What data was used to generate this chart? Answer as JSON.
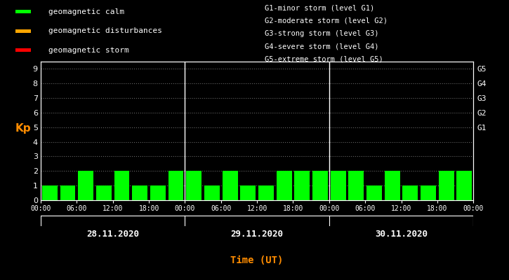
{
  "background_color": "#000000",
  "plot_bg_color": "#000000",
  "bar_color": "#00ff00",
  "text_color": "#ffffff",
  "kp_label_color": "#ff8c00",
  "xlabel_color": "#ff8c00",
  "date_label_color": "#ffffff",
  "bar_values": [
    1,
    1,
    2,
    1,
    2,
    1,
    1,
    2,
    2,
    1,
    2,
    1,
    1,
    2,
    2,
    2,
    2,
    2,
    1,
    2,
    1,
    1,
    2,
    2
  ],
  "days": [
    "28.11.2020",
    "29.11.2020",
    "30.11.2020"
  ],
  "ylim": [
    0,
    9.5
  ],
  "yticks": [
    0,
    1,
    2,
    3,
    4,
    5,
    6,
    7,
    8,
    9
  ],
  "right_labels": [
    [
      5,
      "G1"
    ],
    [
      6,
      "G2"
    ],
    [
      7,
      "G3"
    ],
    [
      8,
      "G4"
    ],
    [
      9,
      "G5"
    ]
  ],
  "hour_ticks": [
    0,
    6,
    12,
    18
  ],
  "legend_items": [
    {
      "color": "#00ff00",
      "label": "geomagnetic calm"
    },
    {
      "color": "#ffa500",
      "label": "geomagnetic disturbances"
    },
    {
      "color": "#ff0000",
      "label": "geomagnetic storm"
    }
  ],
  "legend_info_lines": [
    "G1-minor storm (level G1)",
    "G2-moderate storm (level G2)",
    "G3-strong storm (level G3)",
    "G4-severe storm (level G4)",
    "G5-extreme storm (level G5)"
  ],
  "xlabel": "Time (UT)",
  "ylabel": "Kp",
  "grid_color": "#ffffff",
  "separator_color": "#ffffff",
  "spine_color": "#ffffff"
}
